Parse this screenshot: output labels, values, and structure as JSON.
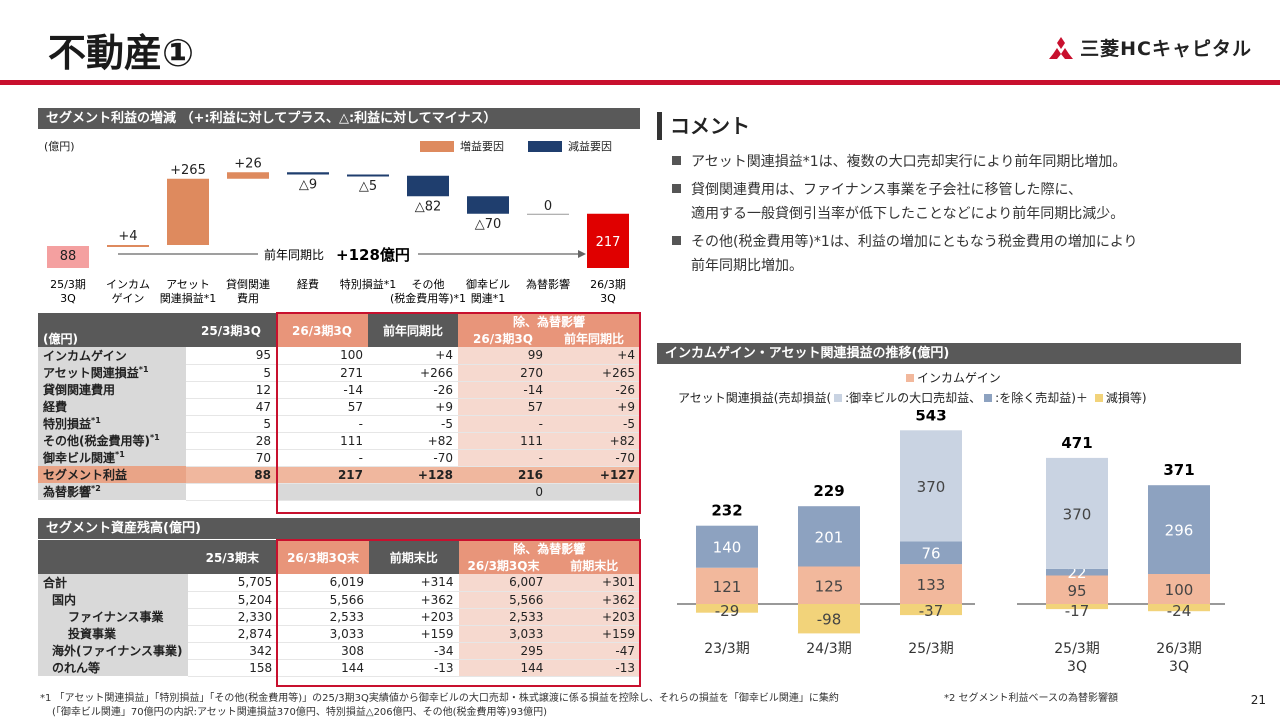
{
  "title": "不動産①",
  "logo": {
    "text": "三菱HCキャピタル"
  },
  "page_number": "21",
  "waterfall": {
    "header": "セグメント利益の増減 （+:利益に対してプラス、△:利益に対してマイナス）",
    "unit": "(億円)",
    "legend_increase": "増益要因",
    "legend_decrease": "減益要因",
    "yoy_label": "前年同期比",
    "yoy_value": "+128億円",
    "colors": {
      "start": "#f4a0a0",
      "increase": "#de8a5e",
      "decrease": "#1f3e6e",
      "end": "#e00000"
    },
    "steps": [
      {
        "label1": "25/3期",
        "label2": "3Q",
        "sup": "",
        "value": "88",
        "type": "start",
        "num": 88
      },
      {
        "label1": "インカム",
        "label2": "ゲイン",
        "sup": "",
        "value": "+4",
        "type": "inc",
        "num": 4
      },
      {
        "label1": "アセット",
        "label2": "関連損益",
        "sup": "*1",
        "value": "+265",
        "type": "inc",
        "num": 265
      },
      {
        "label1": "貸倒関連",
        "label2": "費用",
        "sup": "",
        "value": "+26",
        "type": "inc",
        "num": 26
      },
      {
        "label1": "経費",
        "label2": "",
        "sup": "",
        "value": "△9",
        "type": "dec",
        "num": -9
      },
      {
        "label1": "特別損益",
        "label2": "",
        "sup": "*1",
        "value": "△5",
        "type": "dec",
        "num": -5
      },
      {
        "label1": "その他",
        "label2": "(税金費用等)",
        "sup": "*1",
        "value": "△82",
        "type": "dec",
        "num": -82
      },
      {
        "label1": "御幸ビル",
        "label2": "関連",
        "sup": "*1",
        "value": "△70",
        "type": "dec",
        "num": -70
      },
      {
        "label1": "為替影響",
        "label2": "",
        "sup": "",
        "value": "0",
        "type": "zero",
        "num": 0
      },
      {
        "label1": "26/3期",
        "label2": "3Q",
        "sup": "",
        "value": "217",
        "type": "end",
        "num": 217
      }
    ]
  },
  "profit_table": {
    "unit": "(億円)",
    "col_prev": "25/3期3Q",
    "col_cur": "26/3期3Q",
    "col_yoy": "前年同期比",
    "col_ex_group": "除、為替影響",
    "col_ex_cur": "26/3期3Q",
    "col_ex_yoy": "前年同期比",
    "rows": [
      {
        "label": "インカムゲイン",
        "sup": "",
        "prev": "95",
        "cur": "100",
        "yoy": "+4",
        "ex_cur": "99",
        "ex_yoy": "+4"
      },
      {
        "label": "アセット関連損益",
        "sup": "*1",
        "prev": "5",
        "cur": "271",
        "yoy": "+266",
        "ex_cur": "270",
        "ex_yoy": "+265"
      },
      {
        "label": "貸倒関連費用",
        "sup": "",
        "prev": "12",
        "cur": "-14",
        "yoy": "-26",
        "ex_cur": "-14",
        "ex_yoy": "-26"
      },
      {
        "label": "経費",
        "sup": "",
        "prev": "47",
        "cur": "57",
        "yoy": "+9",
        "ex_cur": "57",
        "ex_yoy": "+9"
      },
      {
        "label": "特別損益",
        "sup": "*1",
        "prev": "5",
        "cur": "-",
        "yoy": "-5",
        "ex_cur": "-",
        "ex_yoy": "-5"
      },
      {
        "label": "その他(税金費用等)",
        "sup": "*1",
        "prev": "28",
        "cur": "111",
        "yoy": "+82",
        "ex_cur": "111",
        "ex_yoy": "+82"
      },
      {
        "label": "御幸ビル関連",
        "sup": "*1",
        "prev": "70",
        "cur": "-",
        "yoy": "-70",
        "ex_cur": "-",
        "ex_yoy": "-70"
      },
      {
        "label": "セグメント利益",
        "sup": "",
        "prev": "88",
        "cur": "217",
        "yoy": "+128",
        "ex_cur": "216",
        "ex_yoy": "+127"
      },
      {
        "label": "為替影響",
        "sup": "*2",
        "prev": "",
        "cur": "",
        "yoy": "",
        "ex_cur": "0",
        "ex_yoy": ""
      }
    ]
  },
  "asset_table": {
    "header": "セグメント資産残高(億円)",
    "col_prev": "25/3期末",
    "col_cur": "26/3期3Q末",
    "col_diff": "前期末比",
    "col_ex_group": "除、為替影響",
    "col_ex_cur": "26/3期3Q末",
    "col_ex_diff": "前期末比",
    "rows": [
      {
        "label": "合計",
        "level": 0,
        "prev": "5,705",
        "cur": "6,019",
        "diff": "+314",
        "ex_cur": "6,007",
        "ex_diff": "+301"
      },
      {
        "label": "国内",
        "level": 1,
        "prev": "5,204",
        "cur": "5,566",
        "diff": "+362",
        "ex_cur": "5,566",
        "ex_diff": "+362"
      },
      {
        "label": "ファイナンス事業",
        "level": 2,
        "prev": "2,330",
        "cur": "2,533",
        "diff": "+203",
        "ex_cur": "2,533",
        "ex_diff": "+203"
      },
      {
        "label": "投資事業",
        "level": 2,
        "prev": "2,874",
        "cur": "3,033",
        "diff": "+159",
        "ex_cur": "3,033",
        "ex_diff": "+159"
      },
      {
        "label": "海外(ファイナンス事業)",
        "level": 1,
        "prev": "342",
        "cur": "308",
        "diff": "-34",
        "ex_cur": "295",
        "ex_diff": "-47"
      },
      {
        "label": "のれん等",
        "level": 1,
        "prev": "158",
        "cur": "144",
        "diff": "-13",
        "ex_cur": "144",
        "ex_diff": "-13"
      }
    ]
  },
  "comment": {
    "header": "コメント",
    "bullets": [
      {
        "line1": "アセット関連損益*1は、複数の大口売却実行により前年同期比増加。",
        "line2": ""
      },
      {
        "line1": "貸倒関連費用は、ファイナンス事業を子会社に移管した際に、",
        "line2": "適用する一般貸倒引当率が低下したことなどにより前年同期比減少。"
      },
      {
        "line1": "その他(税金費用等)*1は、利益の増加にともなう税金費用の増加により",
        "line2": "前年同期比増加。"
      }
    ]
  },
  "stack_chart": {
    "header": "インカムゲイン・アセット関連損益の推移(億円)",
    "legend1": "インカムゲイン",
    "legend2": "アセット関連損益(売却損益(",
    "legend2b": ":御幸ビルの大口売却益、",
    "legend2c": ":を除く売却益)＋",
    "legend2d": "減損等)",
    "colors": {
      "income": "#f2b89c",
      "sale": "#8da2c0",
      "miyuki": "#c9d3e2",
      "impair": "#f2d37a"
    },
    "chart_data": {
      "type": "bar",
      "categories": [
        "23/3期",
        "24/3期",
        "25/3期",
        "25/3期 3Q",
        "26/3期 3Q"
      ],
      "series": [
        {
          "name": "インカムゲイン",
          "values": [
            121,
            125,
            133,
            95,
            100
          ]
        },
        {
          "name": "売却益(御幸ビル除く)",
          "values": [
            140,
            201,
            76,
            22,
            296
          ]
        },
        {
          "name": "御幸ビルの大口売却益",
          "values": [
            0,
            0,
            370,
            370,
            0
          ]
        },
        {
          "name": "減損等",
          "values": [
            -29,
            -98,
            -37,
            -17,
            -24
          ]
        }
      ],
      "totals": [
        232,
        229,
        543,
        471,
        371
      ]
    },
    "cat_labels": [
      {
        "l1": "23/3期",
        "l2": ""
      },
      {
        "l1": "24/3期",
        "l2": ""
      },
      {
        "l1": "25/3期",
        "l2": ""
      },
      {
        "l1": "25/3期",
        "l2": "3Q"
      },
      {
        "l1": "26/3期",
        "l2": "3Q"
      }
    ]
  },
  "footnotes": {
    "f1a": "*1 「アセット関連損益」「特別損益」「その他(税金費用等)」の25/3期3Q実績値から御幸ビルの大口売却・株式譲渡に係る損益を控除し、それらの損益を「御幸ビル関連」に集約",
    "f1b": "(「御幸ビル関連」70億円の内訳:アセット関連損益370億円、特別損益△206億円、その他(税金費用等)93億円)",
    "f2": "*2 セグメント利益ベースの為替影響額"
  }
}
